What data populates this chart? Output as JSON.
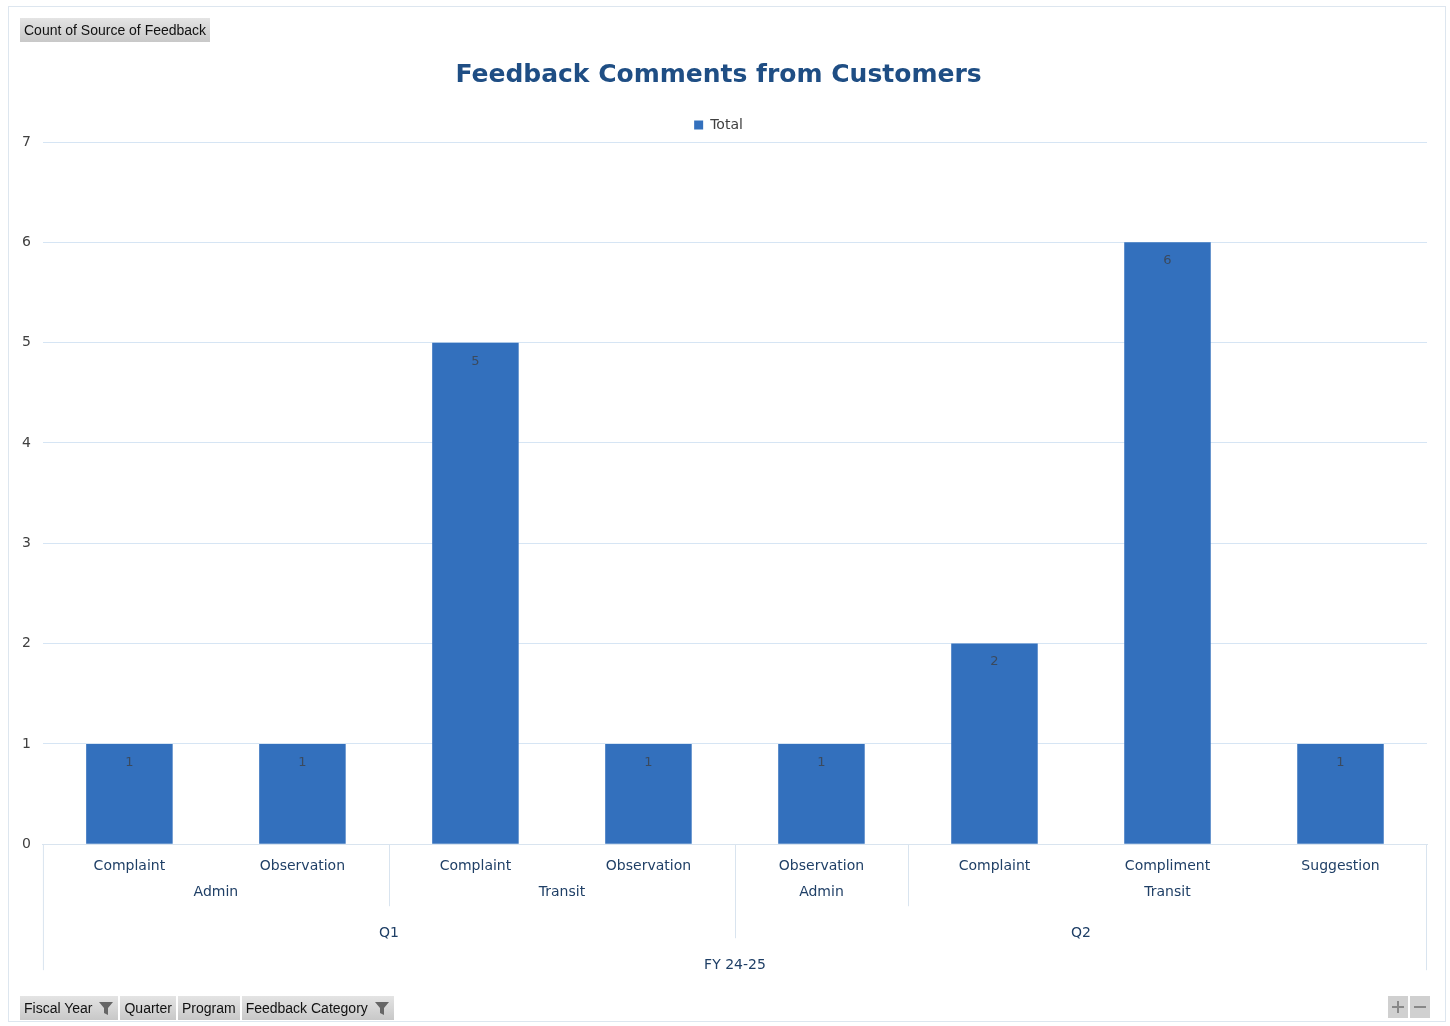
{
  "chart_data": {
    "type": "bar",
    "title": "Feedback Comments from Customers",
    "categories": [
      "Complaint",
      "Observation",
      "Complaint",
      "Observation",
      "Observation",
      "Complaint",
      "Compliment",
      "Suggestion"
    ],
    "series": [
      {
        "name": "Total",
        "color": "#3370bd",
        "values": [
          1,
          1,
          5,
          1,
          1,
          2,
          6,
          1
        ]
      }
    ],
    "ylim": [
      0,
      7
    ],
    "yticks": [
      0,
      1,
      2,
      3,
      4,
      5,
      6,
      7
    ],
    "grid": "y",
    "legend": "top",
    "data_labels": true,
    "annotations": [
      "Count of Source of Feedback",
      "Fiscal Year",
      "Quarter",
      "Program",
      "Feedback Category",
      "Admin",
      "Transit",
      "Admin",
      "Transit",
      "Q1",
      "Q2",
      "FY 24-25"
    ]
  }
}
